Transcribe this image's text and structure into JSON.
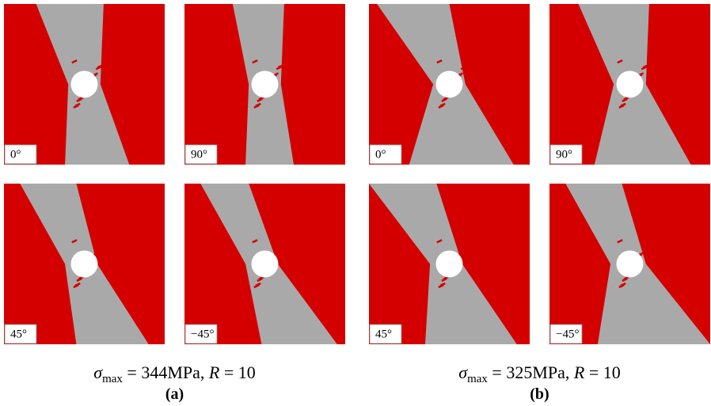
{
  "groups": [
    {
      "caption": {
        "symbol": "σ",
        "subscript": "max",
        "text": " = 344MPa, ",
        "r_symbol": "R",
        "r_text": " = 10"
      },
      "label": "(a)",
      "panels": [
        {
          "label": "0°"
        },
        {
          "label": "90°"
        },
        {
          "label": "45°"
        },
        {
          "label": "−45°"
        }
      ]
    },
    {
      "caption": {
        "symbol": "σ",
        "subscript": "max",
        "text": " = 325MPa, ",
        "r_symbol": "R",
        "r_text": " = 10"
      },
      "label": "(b)",
      "panels": [
        {
          "label": "0°"
        },
        {
          "label": "90°"
        },
        {
          "label": "45°"
        },
        {
          "label": "−45°"
        }
      ]
    }
  ]
}
